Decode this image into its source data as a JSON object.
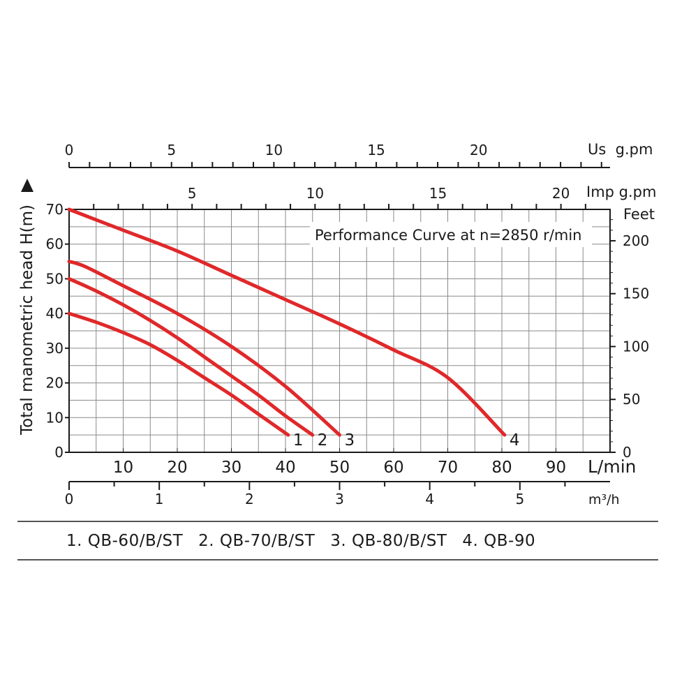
{
  "chart_data": {
    "type": "line",
    "title": "Performance Curve at n=2850 r/min",
    "ylabel": "Total manometric head H(m)",
    "ylim": [
      0,
      70
    ],
    "yticks": [
      "0",
      "10",
      "20",
      "30",
      "40",
      "50",
      "60",
      "70"
    ],
    "xlim": [
      0,
      100
    ],
    "xunit": "L/min",
    "xticks": [
      "10",
      "20",
      "30",
      "40",
      "50",
      "60",
      "70",
      "80",
      "90"
    ],
    "xtick_values": [
      10,
      20,
      30,
      40,
      50,
      60,
      70,
      80,
      90
    ],
    "top_axis_us": {
      "unit": "Us  g.pm",
      "labels": [
        "0",
        "5",
        "10",
        "15",
        "20"
      ],
      "values": [
        0,
        5,
        10,
        15,
        20
      ]
    },
    "top_axis_imp": {
      "unit": "Imp g.pm",
      "labels": [
        "5",
        "10",
        "15",
        "20"
      ],
      "values": [
        5,
        10,
        15,
        20
      ]
    },
    "right_axis": {
      "unit": "Feet",
      "labels": [
        "0",
        "50",
        "100",
        "150",
        "200"
      ],
      "values": [
        0,
        50,
        100,
        150,
        200
      ]
    },
    "bottom_axis_m3h": {
      "unit": "m³/h",
      "labels": [
        "0",
        "1",
        "2",
        "3",
        "4",
        "5"
      ],
      "values": [
        0,
        1,
        2,
        3,
        4,
        5
      ]
    },
    "grid": true,
    "series": [
      {
        "name": "1",
        "x": [
          0,
          5,
          10,
          15,
          20,
          25,
          30,
          35,
          40.5
        ],
        "y": [
          40,
          37.5,
          34.5,
          31,
          26.5,
          21.5,
          16.5,
          11,
          5
        ]
      },
      {
        "name": "2",
        "x": [
          0,
          5,
          10,
          15,
          20,
          25,
          30,
          35,
          40,
          45
        ],
        "y": [
          50,
          46.5,
          42.5,
          38,
          33,
          27.5,
          22,
          16.5,
          10.5,
          5
        ]
      },
      {
        "name": "3",
        "x": [
          0,
          3,
          10,
          20,
          30,
          40,
          50
        ],
        "y": [
          55,
          53.5,
          48,
          40,
          30.5,
          19,
          5
        ]
      },
      {
        "name": "4",
        "x": [
          0,
          10,
          20,
          30,
          40,
          50,
          60,
          70,
          80.5
        ],
        "y": [
          70,
          64,
          58,
          51,
          44,
          37,
          29.5,
          21.5,
          5
        ]
      }
    ],
    "line_color": "#e0282a"
  },
  "legend": {
    "items": [
      "1. QB-60/B/ST",
      "2. QB-70/B/ST",
      "3. QB-80/B/ST",
      "4. QB-90"
    ]
  }
}
